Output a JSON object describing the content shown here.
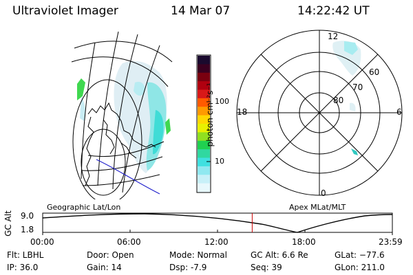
{
  "header": {
    "instrument": "Ultraviolet Imager",
    "date": "14 Mar 07",
    "time": "14:22:42 UT"
  },
  "colorbar": {
    "unit_label": "photon cm⁻²s⁻¹",
    "ticks": [
      "100",
      "10"
    ],
    "colors": [
      "#1a0a2e",
      "#3a0020",
      "#7a0010",
      "#b00010",
      "#d81818",
      "#ff5a00",
      "#ff9a00",
      "#ffd700",
      "#e8f000",
      "#90e020",
      "#20d050",
      "#30d8a0",
      "#40e0e0",
      "#90e8f0",
      "#c8f0f8",
      "#e8f8fc"
    ]
  },
  "polar_plot": {
    "mlt_labels": [
      "12",
      "18",
      "6",
      "0"
    ],
    "lat_labels": [
      "60",
      "70",
      "80"
    ],
    "title": "Apex MLat/MLT"
  },
  "geo_plot": {
    "title": "Geographic Lat/Lon"
  },
  "altitude_plot": {
    "ylabel": "GC Alt",
    "yticks": [
      "9.0",
      "1.8"
    ],
    "xticks": [
      "00:00",
      "06:00",
      "12:00",
      "18:00",
      "23:59"
    ],
    "current_time_hours": 14.38
  },
  "status": {
    "filter": "Flt: LBHL",
    "ip": "IP: 36.0",
    "door": "Door: Open",
    "gain": "Gain: 14",
    "mode": "Mode: Normal",
    "dsp": "Dsp:    -7.9",
    "gc_alt": "GC Alt: 6.6 Re",
    "seq": "Seq: 39",
    "glat": "GLat: −77.6",
    "glon": "GLon: 211.0"
  }
}
